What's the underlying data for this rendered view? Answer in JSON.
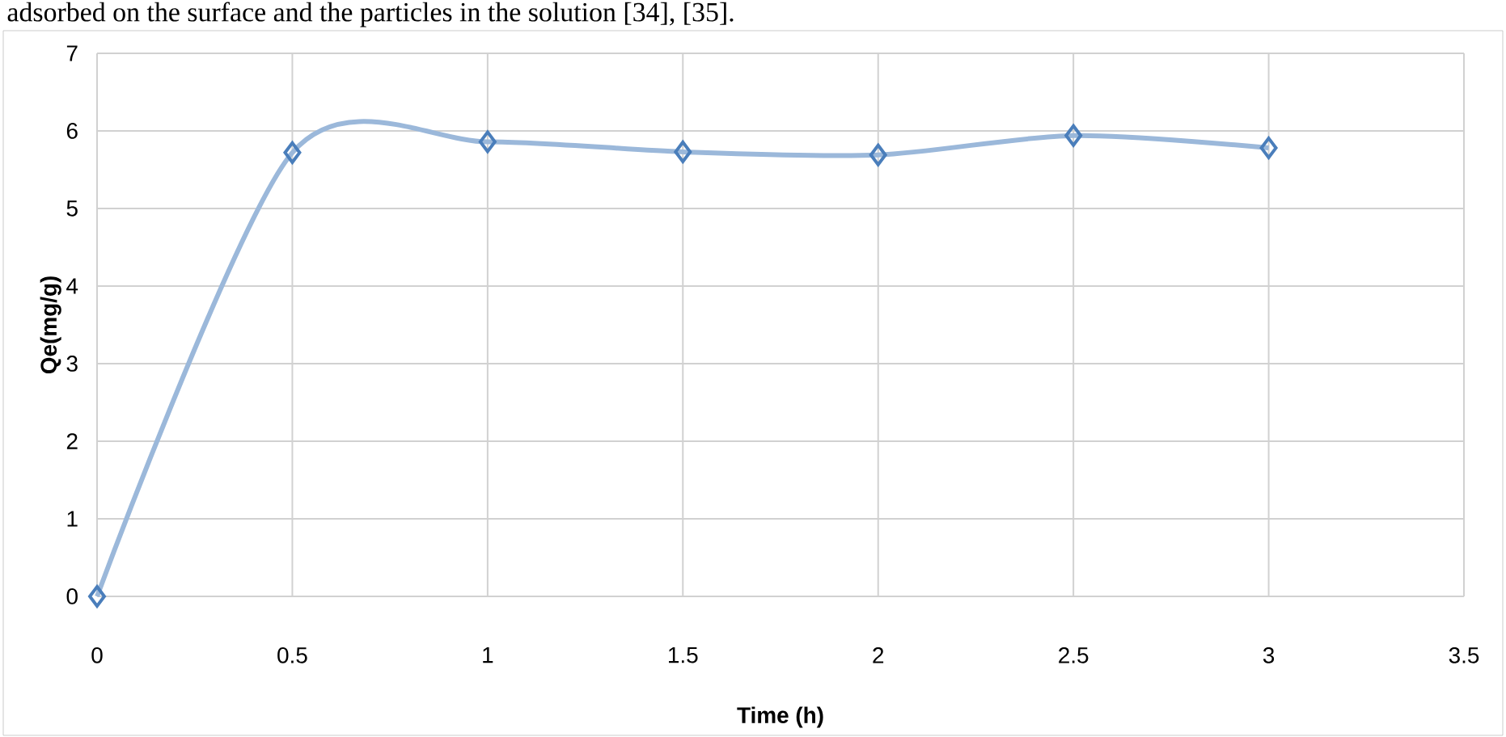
{
  "chart_data": {
    "type": "line",
    "xlabel": "Time (h)",
    "ylabel": "Qe(mg/g)",
    "annotations": [
      "adsorbed on the surface and the particles in the solution [34], [35]."
    ],
    "x": [
      0,
      0.5,
      1,
      1.5,
      2,
      2.5,
      3
    ],
    "series": [
      {
        "color": "#4a7ebb",
        "values": [
          0,
          5.72,
          5.86,
          5.73,
          5.69,
          5.94,
          5.78
        ]
      }
    ],
    "xlim": [
      0,
      3.5
    ],
    "xticks": [
      0,
      0.5,
      1,
      1.5,
      2,
      2.5,
      3,
      3.5
    ],
    "ylim": [
      0,
      7
    ],
    "yticks": [
      0,
      1,
      2,
      3,
      4,
      5,
      6,
      7
    ],
    "grid": true,
    "marker": "diamond",
    "line_style": "solid"
  }
}
